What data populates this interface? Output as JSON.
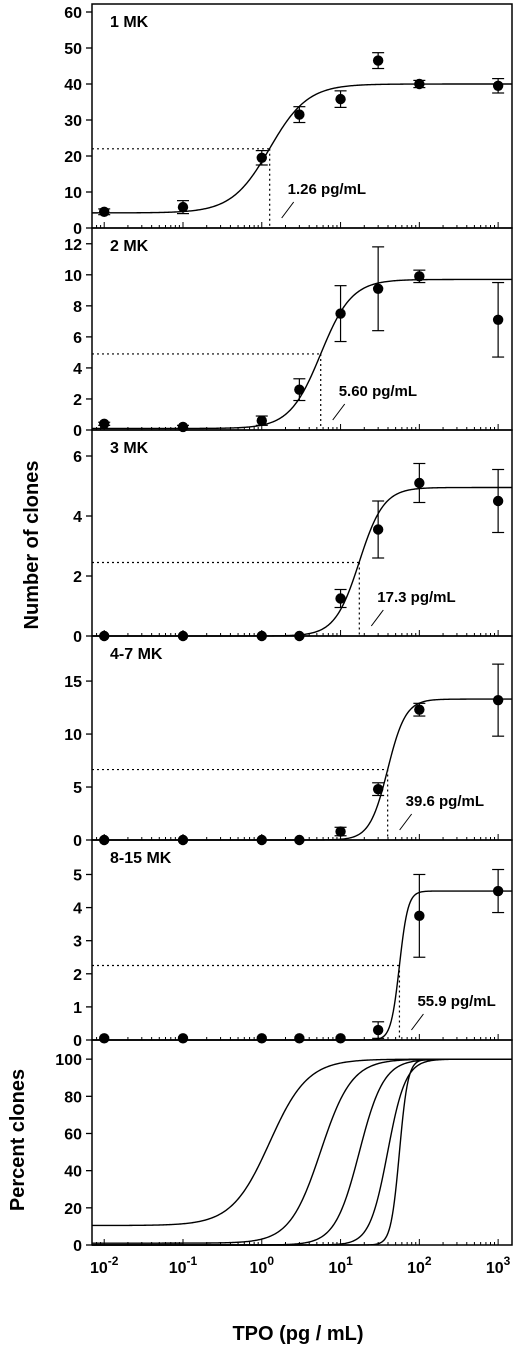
{
  "chart_data": {
    "type": "scatter",
    "xlabel": "TPO (pg / mL)",
    "xscale": "log",
    "xlim": [
      0.007,
      1500
    ],
    "x_ticks": [
      0.01,
      0.1,
      1,
      10,
      100,
      1000
    ],
    "x_tick_labels": [
      {
        "base": "10",
        "exp": "-2"
      },
      {
        "base": "10",
        "exp": "-1"
      },
      {
        "base": "10",
        "exp": "0"
      },
      {
        "base": "10",
        "exp": "1"
      },
      {
        "base": "10",
        "exp": "2"
      },
      {
        "base": "10",
        "exp": "3"
      }
    ],
    "shared_ylabel": "Number of clones",
    "panels": [
      {
        "label": "1 MK",
        "ylim": [
          0,
          60
        ],
        "yticks": [
          0,
          10,
          20,
          30,
          40,
          50,
          60
        ],
        "x": [
          0.01,
          0.1,
          1,
          3,
          10,
          30,
          100,
          1000
        ],
        "y": [
          4.5,
          5.8,
          19.5,
          31.5,
          35.8,
          46.5,
          40,
          39.5
        ],
        "yerr": [
          0.8,
          1.8,
          2.0,
          2.2,
          2.3,
          2.2,
          1.0,
          2.0
        ],
        "fit": {
          "bottom": 4.2,
          "top": 40,
          "ec50": 1.26,
          "hill": 1.8
        },
        "ec50_label": "1.26 pg/mL",
        "marker_y": 22
      },
      {
        "label": "2 MK",
        "ylim": [
          0,
          12.5
        ],
        "yticks": [
          0,
          2,
          4,
          6,
          8,
          10,
          12
        ],
        "x": [
          0.01,
          0.1,
          1,
          3,
          10,
          30,
          100,
          1000
        ],
        "y": [
          0.4,
          0.2,
          0.6,
          2.6,
          7.5,
          9.1,
          9.9,
          7.1
        ],
        "yerr": [
          0.1,
          0.1,
          0.3,
          0.7,
          1.8,
          2.7,
          0.4,
          2.4
        ],
        "fit": {
          "bottom": 0.1,
          "top": 9.7,
          "ec50": 5.6,
          "hill": 2.2
        },
        "ec50_label": "5.60 pg/mL",
        "marker_y": 4.9
      },
      {
        "label": "3 MK",
        "ylim": [
          0,
          6.6
        ],
        "yticks": [
          0,
          2,
          4,
          6
        ],
        "x": [
          0.01,
          0.1,
          1,
          3,
          10,
          30,
          100,
          1000
        ],
        "y": [
          0,
          0,
          0,
          0,
          1.25,
          3.55,
          5.1,
          4.5
        ],
        "yerr": [
          0,
          0,
          0,
          0,
          0.3,
          0.95,
          0.65,
          1.05
        ],
        "fit": {
          "bottom": 0,
          "top": 4.95,
          "ec50": 17.3,
          "hill": 2.8
        },
        "ec50_label": "17.3 pg/mL",
        "marker_y": 2.45
      },
      {
        "label": "4-7 MK",
        "ylim": [
          0,
          18.5
        ],
        "yticks": [
          0,
          5,
          10,
          15
        ],
        "x": [
          0.01,
          0.1,
          1,
          3,
          10,
          30,
          100,
          1000
        ],
        "y": [
          0,
          0,
          0,
          0,
          0.8,
          4.8,
          12.3,
          13.2
        ],
        "yerr": [
          0,
          0,
          0,
          0,
          0.4,
          0.6,
          0.6,
          3.4
        ],
        "fit": {
          "bottom": 0,
          "top": 13.3,
          "ec50": 39.6,
          "hill": 3.8
        },
        "ec50_label": "39.6 pg/mL",
        "marker_y": 6.65
      },
      {
        "label": "8-15 MK",
        "ylim": [
          0,
          5.8
        ],
        "yticks": [
          0,
          1,
          2,
          3,
          4,
          5
        ],
        "x": [
          0.01,
          0.1,
          1,
          3,
          10,
          30,
          100,
          1000
        ],
        "y": [
          0.05,
          0.05,
          0.05,
          0.05,
          0.05,
          0.3,
          3.75,
          4.5
        ],
        "yerr": [
          0,
          0,
          0,
          0,
          0,
          0.25,
          1.25,
          0.65
        ],
        "fit": {
          "bottom": 0,
          "top": 4.5,
          "ec50": 55.9,
          "hill": 8
        },
        "ec50_label": "55.9 pg/mL",
        "marker_y": 2.25
      },
      {
        "label": "",
        "ylabel": "Percent clones",
        "ylim": [
          0,
          106
        ],
        "yticks": [
          0,
          20,
          40,
          60,
          80,
          100
        ],
        "curves": [
          {
            "bottom": 10.5,
            "top": 100,
            "ec50": 1.26,
            "hill": 1.8
          },
          {
            "bottom": 1,
            "top": 100,
            "ec50": 5.6,
            "hill": 2.2
          },
          {
            "bottom": 0,
            "top": 100,
            "ec50": 17.3,
            "hill": 2.8
          },
          {
            "bottom": 0,
            "top": 100,
            "ec50": 39.6,
            "hill": 3.8
          },
          {
            "bottom": 0,
            "top": 100,
            "ec50": 55.9,
            "hill": 8
          }
        ]
      }
    ]
  }
}
